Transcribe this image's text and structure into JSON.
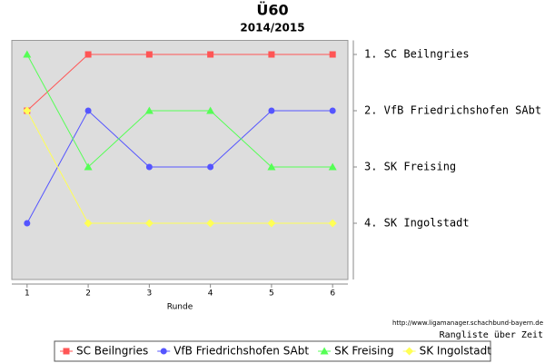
{
  "chart_data": {
    "type": "line",
    "title": "Ü60",
    "subtitle": "2014/2015",
    "x_label": "Runde",
    "source": "http://www.ligamanager.schachbund-bayern.de",
    "note": "Rangliste über Zeit",
    "x": [
      1,
      2,
      3,
      4,
      5,
      6
    ],
    "xlim": [
      0.75,
      6.25
    ],
    "xticks": [
      1,
      2,
      3,
      4,
      5,
      6
    ],
    "ylim": [
      5,
      0.75
    ],
    "yticks": [
      {
        "value": 1,
        "label": "1. SC Beilngries"
      },
      {
        "value": 2,
        "label": "2. VfB Friedrichshofen SAbt"
      },
      {
        "value": 3,
        "label": "3. SK Freising"
      },
      {
        "value": 4,
        "label": "4. SK Ingolstadt"
      }
    ],
    "series": [
      {
        "name": "SC Beilngries",
        "color": "#ff5555",
        "marker": "square",
        "values": [
          2,
          1,
          1,
          1,
          1,
          1
        ]
      },
      {
        "name": "VfB Friedrichshofen SAbt",
        "color": "#5555ff",
        "marker": "circle",
        "values": [
          4,
          2,
          3,
          3,
          2,
          2
        ]
      },
      {
        "name": "SK Freising",
        "color": "#55ff55",
        "marker": "triangle",
        "values": [
          1,
          3,
          2,
          2,
          3,
          3
        ]
      },
      {
        "name": "SK Ingolstadt",
        "color": "#ffff55",
        "marker": "diamond",
        "values": [
          2,
          4,
          4,
          4,
          4,
          4
        ]
      }
    ]
  }
}
